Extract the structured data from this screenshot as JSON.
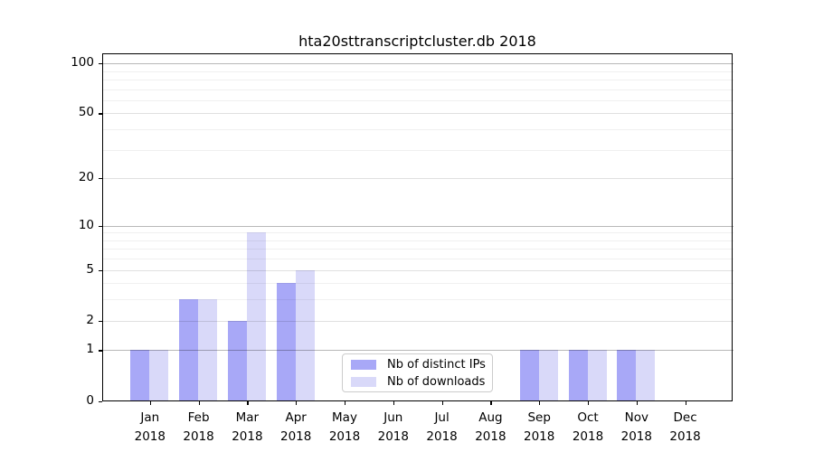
{
  "figure_title": "hta20sttranscriptcluster.db 2018",
  "chart_data": {
    "type": "bar",
    "title": "hta20sttranscriptcluster.db 2018",
    "categories": [
      "Jan 2018",
      "Feb 2018",
      "Mar 2018",
      "Apr 2018",
      "May 2018",
      "Jun 2018",
      "Jul 2018",
      "Aug 2018",
      "Sep 2018",
      "Oct 2018",
      "Nov 2018",
      "Dec 2018"
    ],
    "series": [
      {
        "name": "Nb of distinct IPs",
        "color": "#a8a8f7",
        "values": [
          1,
          3,
          2,
          4,
          0,
          0,
          0,
          0,
          1,
          1,
          1,
          0
        ]
      },
      {
        "name": "Nb of downloads",
        "color": "#d9d9f9",
        "values": [
          1,
          3,
          9,
          5,
          0,
          0,
          0,
          0,
          1,
          1,
          1,
          0
        ]
      }
    ],
    "yscale": "log1p",
    "yticks": [
      0,
      1,
      2,
      5,
      10,
      20,
      50,
      100
    ],
    "ylim": [
      0,
      114
    ],
    "xlabel": "",
    "ylabel": "",
    "grid": true,
    "legend_position": "lower-center-inside"
  },
  "legend": {
    "items": [
      {
        "label": "Nb of distinct IPs",
        "color": "#a8a8f7"
      },
      {
        "label": "Nb of downloads",
        "color": "#d9d9f9"
      }
    ]
  }
}
